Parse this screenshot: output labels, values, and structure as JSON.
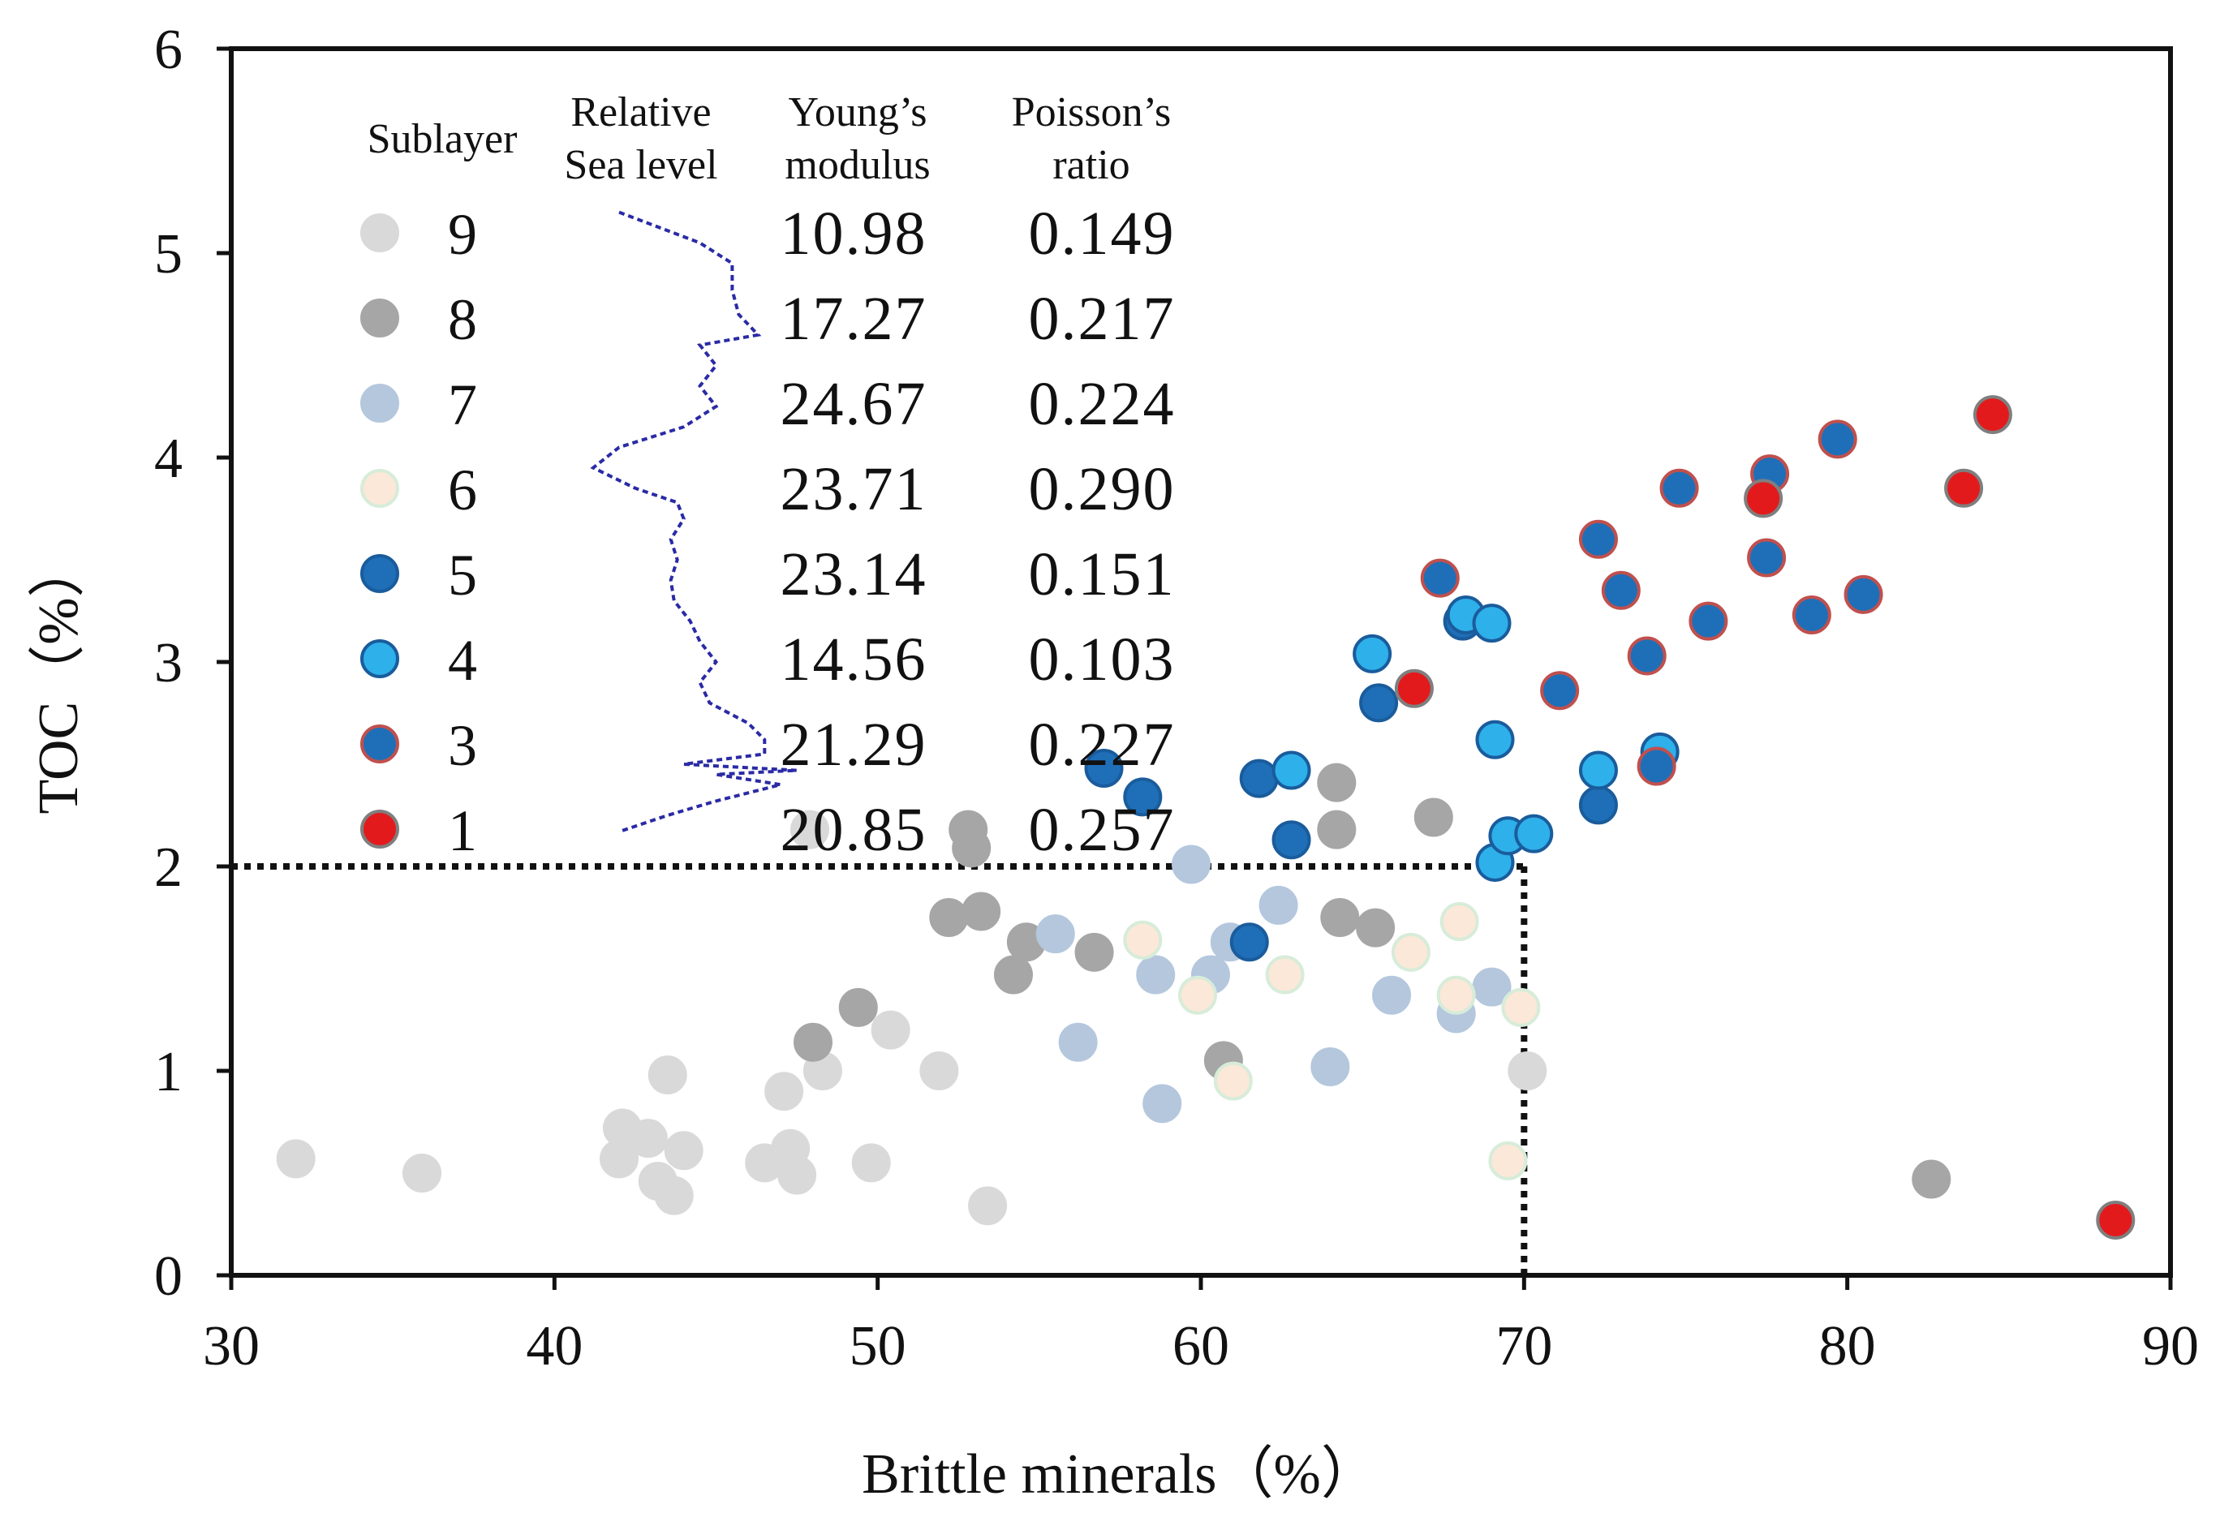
{
  "chart_data": {
    "type": "scatter",
    "title": "",
    "xlabel": "Brittle minerals（%）",
    "ylabel": "TOC（%）",
    "xlim": [
      30,
      90
    ],
    "ylim": [
      0,
      6
    ],
    "xticks": [
      "30",
      "40",
      "50",
      "60",
      "70",
      "80",
      "90"
    ],
    "yticks": [
      "0",
      "1",
      "2",
      "3",
      "4",
      "5",
      "6"
    ],
    "grid": false,
    "threshold_lines": {
      "brittle_minerals": 70,
      "toc": 2,
      "style": "dotted"
    },
    "legend": {
      "placement": "top-left",
      "headers": {
        "sublayer": "Sublayer",
        "sea_level_1": "Relative",
        "sea_level_2": "Sea level",
        "youngs_1": "Young’s",
        "youngs_2": "modulus",
        "poisson_1": "Poisson’s",
        "poisson_2": "ratio"
      },
      "rows": [
        {
          "sublayer": "9",
          "youngs_modulus": "10.98",
          "poissons_ratio": "0.149"
        },
        {
          "sublayer": "8",
          "youngs_modulus": "17.27",
          "poissons_ratio": "0.217"
        },
        {
          "sublayer": "7",
          "youngs_modulus": "24.67",
          "poissons_ratio": "0.224"
        },
        {
          "sublayer": "6",
          "youngs_modulus": "23.71",
          "poissons_ratio": "0.290"
        },
        {
          "sublayer": "5",
          "youngs_modulus": "23.14",
          "poissons_ratio": "0.151"
        },
        {
          "sublayer": "4",
          "youngs_modulus": "14.56",
          "poissons_ratio": "0.103"
        },
        {
          "sublayer": "3",
          "youngs_modulus": "21.29",
          "poissons_ratio": "0.227"
        },
        {
          "sublayer": "1",
          "youngs_modulus": "20.85",
          "poissons_ratio": "0.257"
        }
      ]
    },
    "series": [
      {
        "name": "9",
        "fill": "#d9d9d9",
        "stroke": "#d9d9d9",
        "points": [
          [
            32,
            0.57
          ],
          [
            35.9,
            0.5
          ],
          [
            42,
            0.57
          ],
          [
            42.1,
            0.72
          ],
          [
            42.9,
            0.67
          ],
          [
            43.2,
            0.46
          ],
          [
            43.5,
            0.98
          ],
          [
            43.7,
            0.39
          ],
          [
            44,
            0.61
          ],
          [
            46.5,
            0.55
          ],
          [
            47.1,
            0.9
          ],
          [
            47.3,
            0.62
          ],
          [
            47.5,
            0.49
          ],
          [
            47.9,
            2.18
          ],
          [
            48.3,
            1.0
          ],
          [
            49.8,
            0.55
          ],
          [
            50.4,
            1.2
          ],
          [
            51.9,
            1.0
          ],
          [
            53.4,
            0.34
          ],
          [
            70.1,
            1.0
          ]
        ]
      },
      {
        "name": "8",
        "fill": "#a6a6a6",
        "stroke": "#a6a6a6",
        "points": [
          [
            48,
            1.14
          ],
          [
            49.4,
            1.31
          ],
          [
            52.2,
            1.75
          ],
          [
            52.8,
            2.18
          ],
          [
            52.9,
            2.09
          ],
          [
            53.2,
            1.78
          ],
          [
            54.2,
            1.47
          ],
          [
            54.6,
            1.63
          ],
          [
            56.7,
            1.58
          ],
          [
            60.7,
            1.05
          ],
          [
            64.2,
            2.41
          ],
          [
            64.2,
            2.18
          ],
          [
            64.3,
            1.75
          ],
          [
            65.4,
            1.7
          ],
          [
            67.2,
            2.24
          ],
          [
            82.6,
            0.47
          ]
        ]
      },
      {
        "name": "7",
        "fill": "#b4c7dd",
        "stroke": "#b4c7dd",
        "points": [
          [
            55.5,
            1.67
          ],
          [
            56.2,
            1.14
          ],
          [
            58.6,
            1.47
          ],
          [
            58.8,
            0.84
          ],
          [
            59.7,
            2.01
          ],
          [
            60.3,
            1.47
          ],
          [
            60.9,
            1.63
          ],
          [
            62.4,
            1.81
          ],
          [
            64,
            1.02
          ],
          [
            65.9,
            1.37
          ],
          [
            67.9,
            1.28
          ],
          [
            69,
            1.41
          ]
        ]
      },
      {
        "name": "6",
        "fill": "#fbe8d8",
        "stroke": "#d7ecd9",
        "points": [
          [
            58.2,
            1.64
          ],
          [
            59.9,
            1.37
          ],
          [
            61,
            0.95
          ],
          [
            62.6,
            1.47
          ],
          [
            66.5,
            1.58
          ],
          [
            67.9,
            1.37
          ],
          [
            68,
            1.73
          ],
          [
            69.5,
            0.56
          ],
          [
            69.9,
            1.31
          ]
        ]
      },
      {
        "name": "5",
        "fill": "#1f6fb8",
        "stroke": "#1a5c9c",
        "points": [
          [
            57,
            2.48
          ],
          [
            58.2,
            2.34
          ],
          [
            61.5,
            1.63
          ],
          [
            61.8,
            2.43
          ],
          [
            62.8,
            2.13
          ],
          [
            65.5,
            2.8
          ],
          [
            68.1,
            3.2
          ],
          [
            72.3,
            2.3
          ]
        ]
      },
      {
        "name": "4",
        "fill": "#2eb0ea",
        "stroke": "#1a5c9c",
        "points": [
          [
            62.8,
            2.47
          ],
          [
            65.3,
            3.04
          ],
          [
            68.2,
            3.23
          ],
          [
            69,
            3.19
          ],
          [
            69.1,
            2.62
          ],
          [
            69.1,
            2.02
          ],
          [
            69.5,
            2.15
          ],
          [
            70.3,
            2.16
          ],
          [
            72.3,
            2.47
          ],
          [
            74.2,
            2.56
          ]
        ]
      },
      {
        "name": "3",
        "fill": "#1f6fb8",
        "stroke": "#c0504d",
        "points": [
          [
            67.4,
            3.41
          ],
          [
            71.1,
            2.86
          ],
          [
            72.3,
            3.6
          ],
          [
            73,
            3.35
          ],
          [
            73.8,
            3.03
          ],
          [
            74.1,
            2.49
          ],
          [
            74.8,
            3.85
          ],
          [
            75.7,
            3.2
          ],
          [
            77.5,
            3.51
          ],
          [
            77.6,
            3.92
          ],
          [
            78.9,
            3.23
          ],
          [
            79.7,
            4.09
          ],
          [
            80.5,
            3.33
          ]
        ]
      },
      {
        "name": "1",
        "fill": "#e31a1c",
        "stroke": "#7f7f7f",
        "points": [
          [
            66.6,
            2.87
          ],
          [
            77.4,
            3.8
          ],
          [
            83.6,
            3.85
          ],
          [
            84.5,
            4.21
          ],
          [
            88.3,
            0.27
          ]
        ]
      }
    ]
  },
  "sea_level_curve": {
    "toc_extent": [
      2.17,
      5.2
    ],
    "values": [
      [
        5.2,
        42
      ],
      [
        5.05,
        44.5
      ],
      [
        4.95,
        45.5
      ],
      [
        4.82,
        45.5
      ],
      [
        4.7,
        45.7
      ],
      [
        4.6,
        46.3
      ],
      [
        4.55,
        44.5
      ],
      [
        4.45,
        45
      ],
      [
        4.35,
        44.5
      ],
      [
        4.25,
        45
      ],
      [
        4.15,
        44
      ],
      [
        4.05,
        42
      ],
      [
        3.95,
        41.2
      ],
      [
        3.85,
        42.5
      ],
      [
        3.78,
        43.8
      ],
      [
        3.7,
        44
      ],
      [
        3.6,
        43.6
      ],
      [
        3.5,
        43.8
      ],
      [
        3.4,
        43.6
      ],
      [
        3.3,
        43.7
      ],
      [
        3.2,
        44.2
      ],
      [
        3.1,
        44.5
      ],
      [
        3.0,
        45
      ],
      [
        2.9,
        44.5
      ],
      [
        2.8,
        44.8
      ],
      [
        2.7,
        46
      ],
      [
        2.62,
        46.5
      ],
      [
        2.55,
        46.5
      ],
      [
        2.5,
        44
      ],
      [
        2.47,
        47.5
      ],
      [
        2.45,
        45
      ],
      [
        2.4,
        47
      ],
      [
        2.32,
        45
      ],
      [
        2.25,
        43.5
      ],
      [
        2.17,
        42
      ]
    ]
  }
}
